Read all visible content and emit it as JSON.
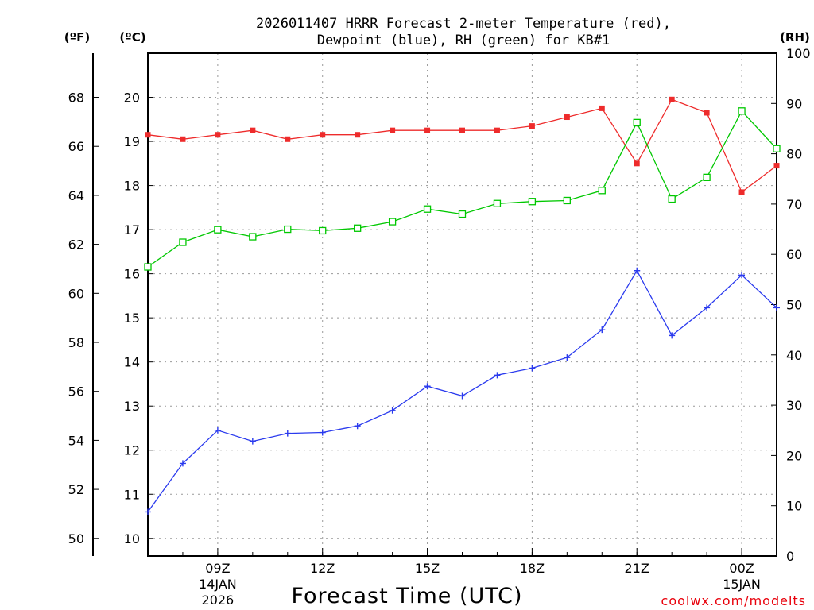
{
  "chart_data": {
    "type": "line",
    "title_line1": "2026011407 HRRR Forecast 2-meter Temperature (red),",
    "title_line2": "Dewpoint (blue), RH (green) for KB#1",
    "xlabel": "Forecast Time (UTC)",
    "credit": "coolwx.com/modelts",
    "unit_left_f": "(ºF)",
    "unit_left_c": "(ºC)",
    "unit_right": "(RH)",
    "x_hours": [
      7,
      8,
      9,
      10,
      11,
      12,
      13,
      14,
      15,
      16,
      17,
      18,
      19,
      20,
      21,
      22,
      23,
      24,
      25
    ],
    "x_range": [
      7,
      25
    ],
    "x_ticks": [
      {
        "hour": 9,
        "label": "09Z",
        "sub1": "14JAN",
        "sub2": "2026"
      },
      {
        "hour": 12,
        "label": "12Z",
        "sub1": "",
        "sub2": ""
      },
      {
        "hour": 15,
        "label": "15Z",
        "sub1": "",
        "sub2": ""
      },
      {
        "hour": 18,
        "label": "18Z",
        "sub1": "",
        "sub2": ""
      },
      {
        "hour": 21,
        "label": "21Z",
        "sub1": "",
        "sub2": ""
      },
      {
        "hour": 24,
        "label": "00Z",
        "sub1": "15JAN",
        "sub2": ""
      }
    ],
    "celsius_axis": {
      "range": [
        9.6,
        21.0
      ],
      "ticks": [
        10,
        11,
        12,
        13,
        14,
        15,
        16,
        17,
        18,
        19,
        20
      ]
    },
    "fahrenheit_ticks": [
      50,
      52,
      54,
      56,
      58,
      60,
      62,
      64,
      66,
      68
    ],
    "rh_axis": {
      "range": [
        0,
        100
      ],
      "ticks": [
        0,
        10,
        20,
        30,
        40,
        50,
        60,
        70,
        80,
        90,
        100
      ]
    },
    "series": [
      {
        "name": "2-meter Temperature (°C)",
        "color": "#ee2b2b",
        "marker": "filled-square",
        "axis": "celsius",
        "values": [
          19.15,
          19.05,
          19.15,
          19.25,
          19.05,
          19.15,
          19.15,
          19.25,
          19.25,
          19.25,
          19.25,
          19.35,
          19.55,
          19.75,
          18.5,
          19.95,
          19.65,
          17.85,
          18.45
        ]
      },
      {
        "name": "Dewpoint (°C)",
        "color": "#2a3aee",
        "marker": "plus",
        "axis": "celsius",
        "values": [
          10.6,
          11.7,
          12.45,
          12.2,
          12.38,
          12.4,
          12.55,
          12.9,
          13.45,
          13.23,
          13.7,
          13.86,
          14.1,
          14.73,
          16.07,
          14.6,
          15.23,
          15.97,
          15.23
        ]
      },
      {
        "name": "RH (%)",
        "color": "#00c800",
        "marker": "open-square",
        "axis": "rh",
        "values": [
          57.5,
          62.4,
          64.9,
          63.5,
          65,
          64.7,
          65.2,
          66.5,
          69,
          68,
          70.1,
          70.5,
          70.7,
          72.7,
          86.2,
          71,
          75.3,
          88.5,
          81
        ]
      }
    ]
  }
}
